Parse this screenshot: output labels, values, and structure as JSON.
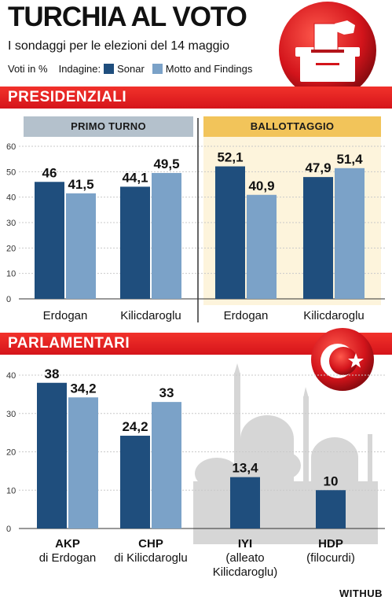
{
  "header": {
    "title": "TURCHIA AL VOTO",
    "subtitle": "I sondaggi per le elezioni del 14 maggio",
    "unit_label": "Voti in %",
    "indagine_label": "Indagine:"
  },
  "legend": {
    "sonar": "Sonar",
    "motto": "Motto and Findings"
  },
  "colors": {
    "sonar": "#1f4e7d",
    "motto": "#7ba2c8",
    "red": "#e3201f",
    "primo_turno_band": "#b4c1cc",
    "ballottaggio_band": "#f2c45a"
  },
  "sections": {
    "presidenziali": "PRESIDENZIALI",
    "parlamentari": "PARLAMENTARI",
    "primo_turno": "PRIMO TURNO",
    "ballottaggio": "BALLOTTAGGIO"
  },
  "credit": "WITHUB",
  "chart_data": [
    {
      "type": "bar",
      "title": "PRIMO TURNO",
      "categories": [
        "Erdogan",
        "Kilicdaroglu"
      ],
      "series": [
        {
          "name": "Sonar",
          "values": [
            46,
            44.1
          ],
          "labels": [
            "46",
            "44,1"
          ]
        },
        {
          "name": "Motto and Findings",
          "values": [
            41.5,
            49.5
          ],
          "labels": [
            "41,5",
            "49,5"
          ]
        }
      ],
      "ylim": [
        0,
        60
      ],
      "yticks": [
        0,
        10,
        20,
        30,
        40,
        50,
        60
      ]
    },
    {
      "type": "bar",
      "title": "BALLOTTAGGIO",
      "categories": [
        "Erdogan",
        "Kilicdaroglu"
      ],
      "series": [
        {
          "name": "Sonar",
          "values": [
            52.1,
            47.9
          ],
          "labels": [
            "52,1",
            "47,9"
          ]
        },
        {
          "name": "Motto and Findings",
          "values": [
            40.9,
            51.4
          ],
          "labels": [
            "40,9",
            "51,4"
          ]
        }
      ],
      "ylim": [
        0,
        60
      ]
    },
    {
      "type": "bar",
      "title": "PARLAMENTARI",
      "categories": [
        "AKP di Erdogan",
        "CHP di Kilicdaroglu",
        "IYI (alleato Kilicdaroglu)",
        "HDP (filocurdi)"
      ],
      "category_lines": [
        [
          "AKP",
          "di Erdogan"
        ],
        [
          "CHP",
          "di Kilicdaroglu"
        ],
        [
          "IYI",
          "(alleato",
          "Kilicdaroglu)"
        ],
        [
          "HDP",
          "(filocurdi)"
        ]
      ],
      "series": [
        {
          "name": "Sonar",
          "values": [
            38,
            24.2,
            13.4,
            10
          ],
          "labels": [
            "38",
            "24,2",
            "13,4",
            "10"
          ]
        },
        {
          "name": "Motto and Findings",
          "values": [
            34.2,
            33,
            null,
            null
          ],
          "labels": [
            "34,2",
            "33",
            "",
            ""
          ]
        }
      ],
      "ylim": [
        0,
        40
      ],
      "yticks": [
        0,
        10,
        20,
        30,
        40
      ]
    }
  ]
}
